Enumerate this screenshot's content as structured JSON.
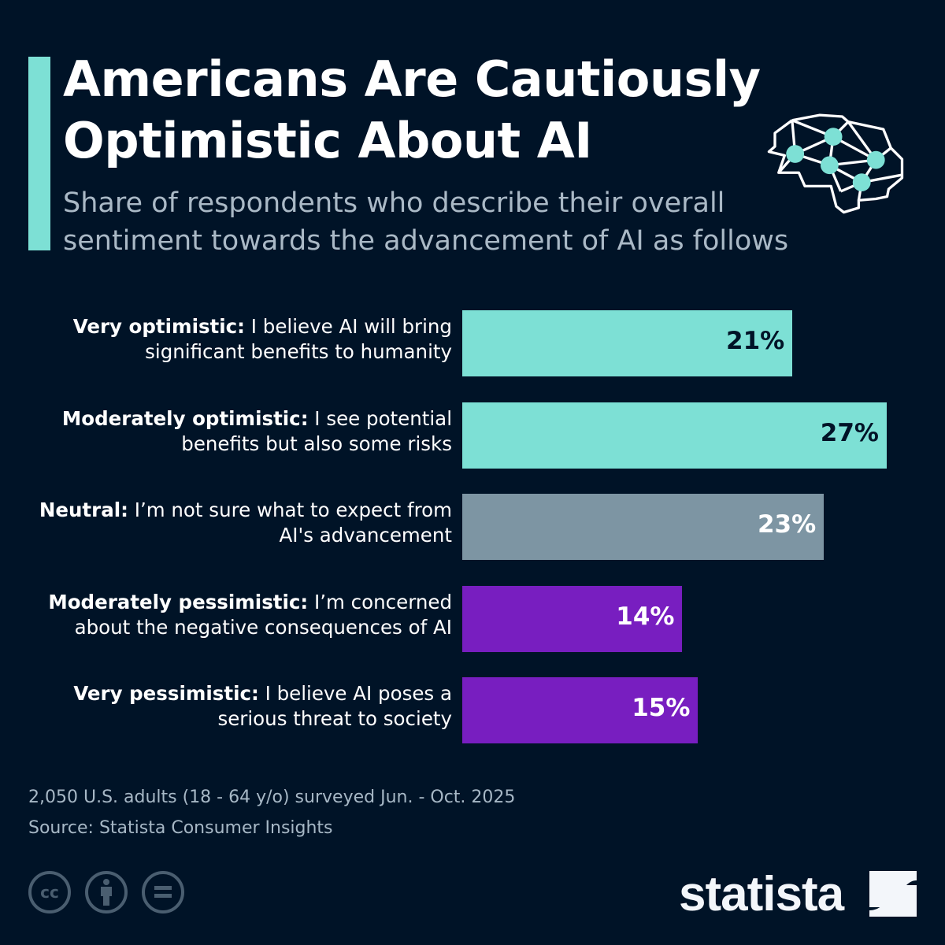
{
  "header": {
    "title": "Americans Are Cautiously Optimistic About AI",
    "subtitle": "Share of respondents who describe their overall sentiment towards the advancement of AI as follows",
    "icon": "brain-network-icon"
  },
  "colors": {
    "optimistic": "#7de0d5",
    "neutral": "#7d95a3",
    "pessimistic": "#781ec0",
    "background": "#001327"
  },
  "chart_data": {
    "type": "bar",
    "orientation": "horizontal",
    "title": "Americans Are Cautiously Optimistic About AI",
    "subtitle": "Share of respondents who describe their overall sentiment towards the advancement of AI as follows",
    "unit": "%",
    "xlim": [
      0,
      27
    ],
    "grid": false,
    "categories": [
      {
        "bold": "Very optimistic:",
        "rest": " I believe AI will bring significant benefits to humanity"
      },
      {
        "bold": "Moderately optimistic:",
        "rest": " I see potential benefits but also some risks"
      },
      {
        "bold": "Neutral:",
        "rest": " I’m not sure what to expect from AI's advancement"
      },
      {
        "bold": "Moderately pessimistic:",
        "rest": " I’m concerned about the negative consequences of AI"
      },
      {
        "bold": "Very pessimistic:",
        "rest": " I believe AI poses a serious threat to society"
      }
    ],
    "values": [
      21,
      27,
      23,
      14,
      15
    ],
    "labels": [
      "21%",
      "27%",
      "23%",
      "14%",
      "15%"
    ],
    "bar_colors": [
      "#7de0d5",
      "#7de0d5",
      "#7d95a3",
      "#781ec0",
      "#781ec0"
    ],
    "label_colors": [
      "#001327",
      "#001327",
      "#ffffff",
      "#ffffff",
      "#ffffff"
    ]
  },
  "footer": {
    "note": "2,050 U.S. adults (18 - 64 y/o) surveyed Jun. - Oct. 2025",
    "source": "Source: Statista Consumer Insights",
    "license_icons": [
      "cc-icon",
      "attribution-icon",
      "no-derivatives-icon"
    ],
    "logo": "statista"
  }
}
